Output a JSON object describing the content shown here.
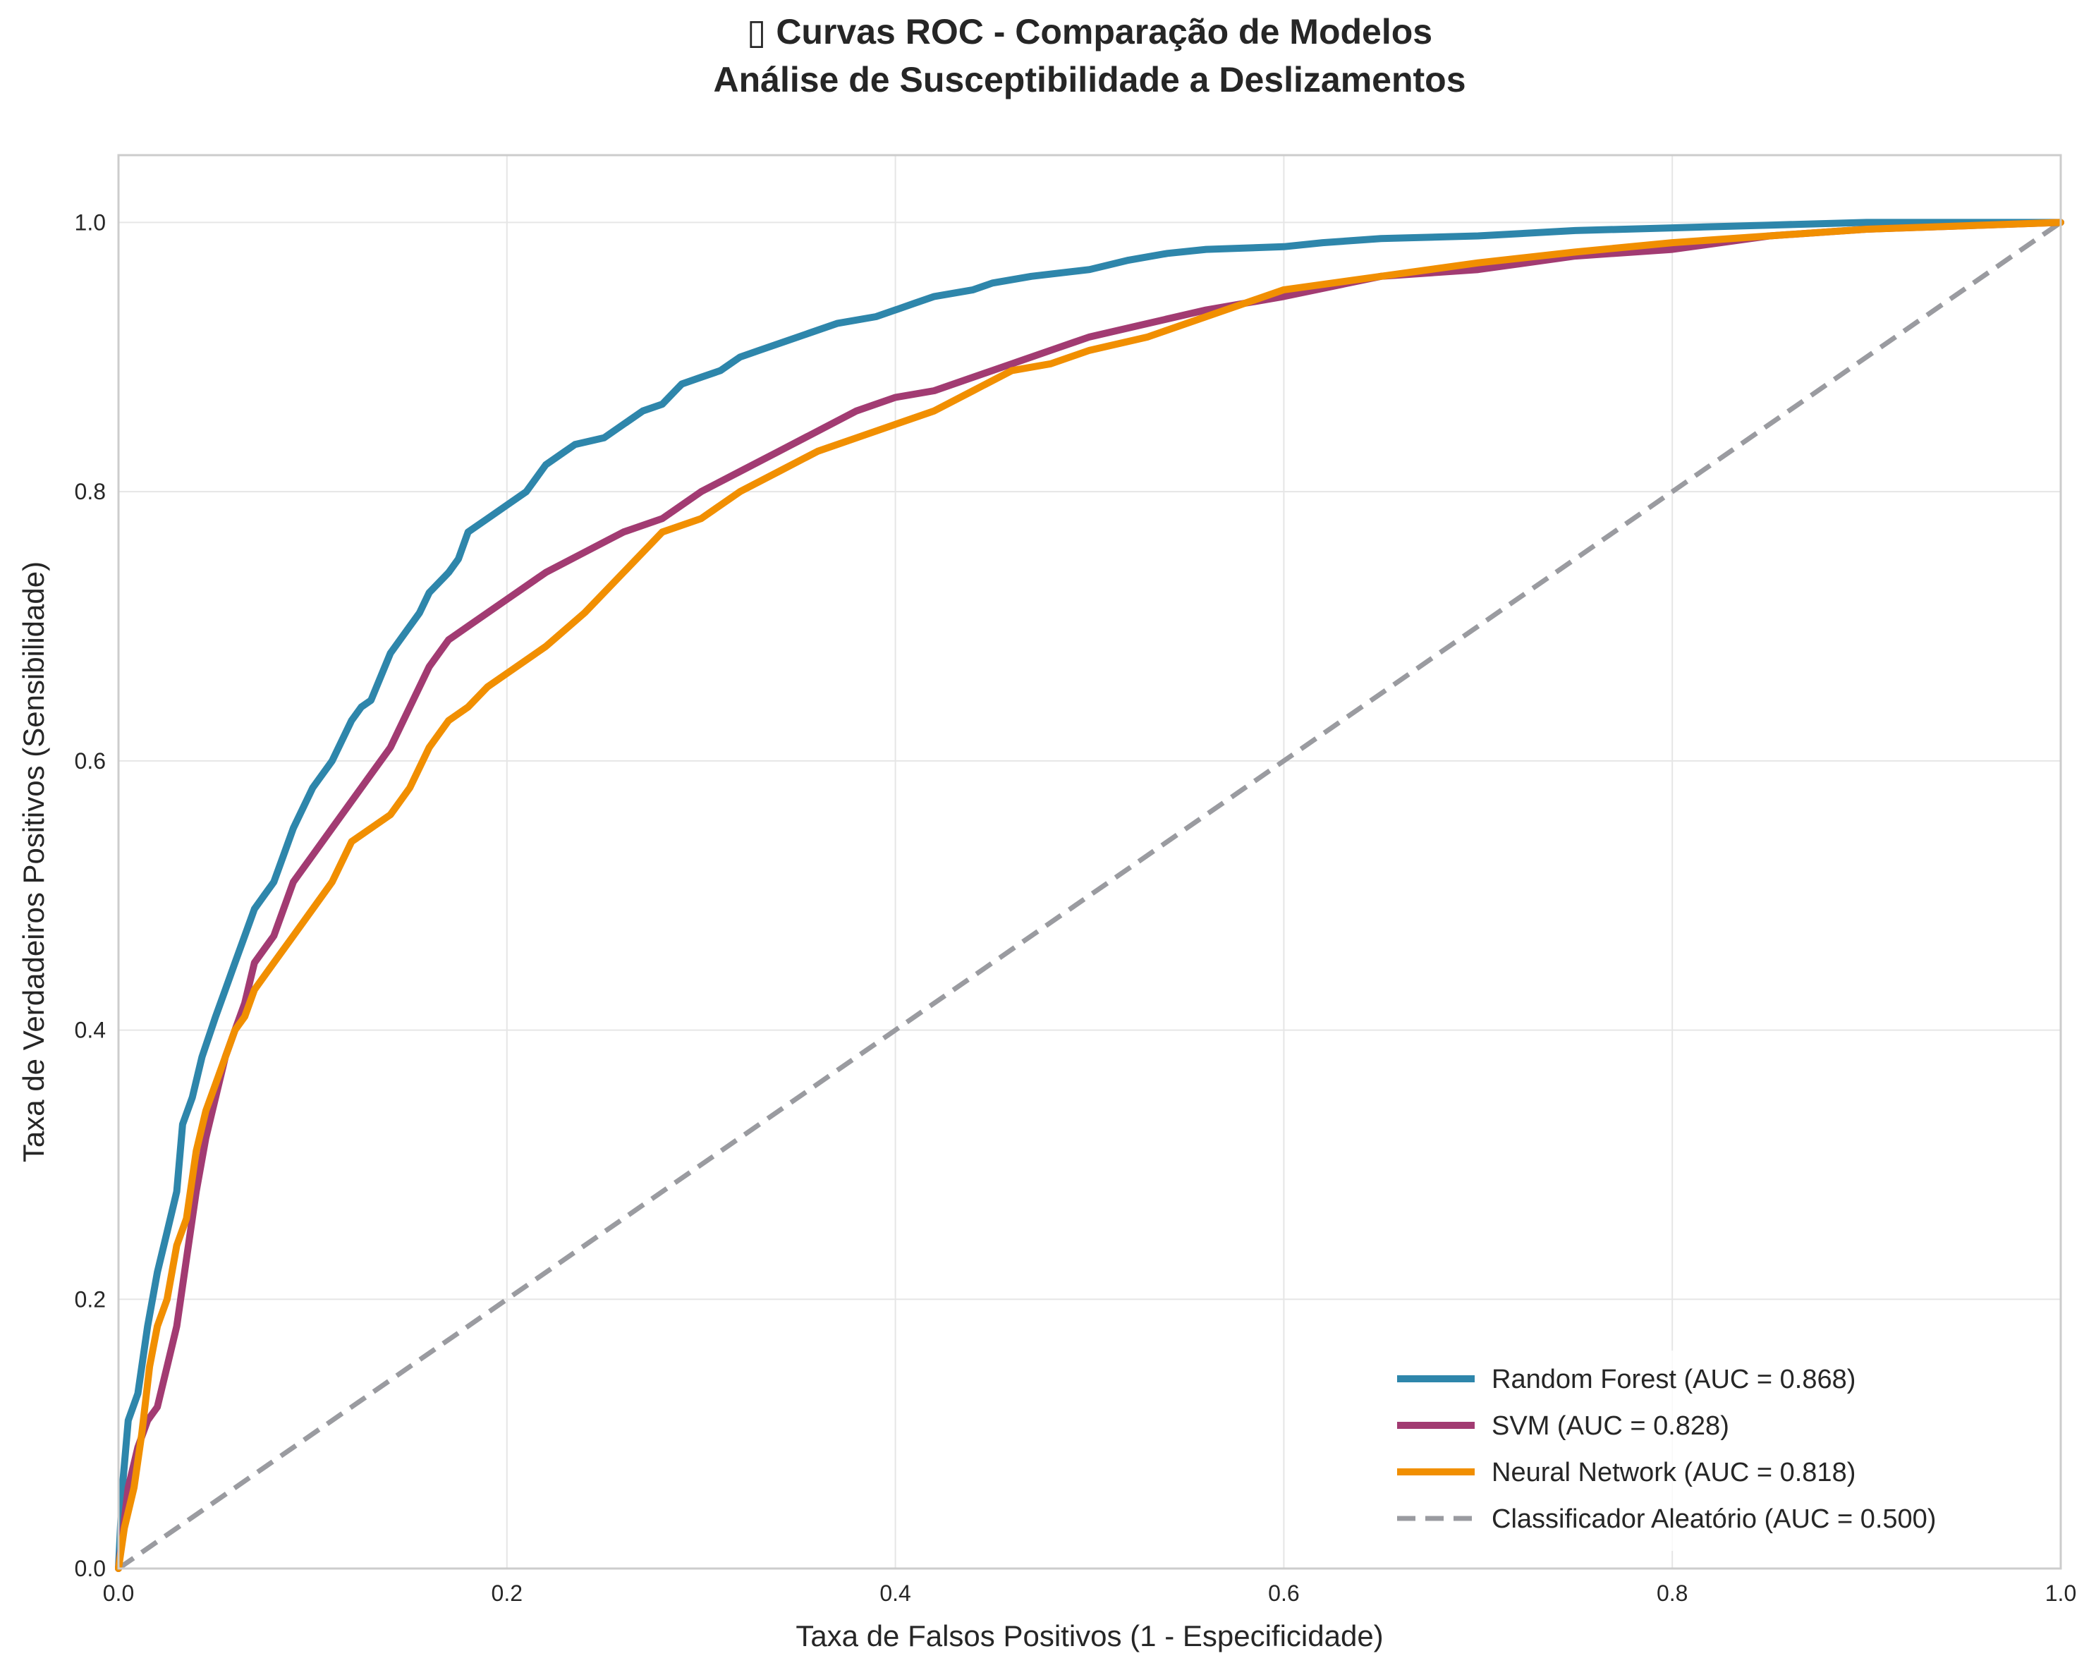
{
  "chart_data": {
    "type": "line",
    "title_lines": [
      "▯ Curvas ROC - Comparação de Modelos",
      "Análise de Susceptibilidade a Deslizamentos"
    ],
    "xlabel": "Taxa de Falsos Positivos (1 - Especificidade)",
    "ylabel": "Taxa de Verdadeiros Positivos (Sensibilidade)",
    "xlim": [
      0.0,
      1.0
    ],
    "ylim": [
      0.0,
      1.05
    ],
    "xticks": [
      0.0,
      0.2,
      0.4,
      0.6,
      0.8,
      1.0
    ],
    "yticks": [
      0.0,
      0.2,
      0.4,
      0.6,
      0.8,
      1.0
    ],
    "xtick_labels": [
      "0.0",
      "0.2",
      "0.4",
      "0.6",
      "0.8",
      "1.0"
    ],
    "ytick_labels": [
      "0.0",
      "0.2",
      "0.4",
      "0.6",
      "0.8",
      "1.0"
    ],
    "grid": true,
    "legend_position": "lower-right",
    "series": [
      {
        "name": "Random Forest (AUC = 0.868)",
        "color": "#2E86AB",
        "dash": false,
        "x": [
          0,
          0.002,
          0.005,
          0.01,
          0.015,
          0.02,
          0.025,
          0.03,
          0.033,
          0.038,
          0.043,
          0.05,
          0.055,
          0.06,
          0.065,
          0.07,
          0.075,
          0.08,
          0.085,
          0.09,
          0.1,
          0.11,
          0.12,
          0.125,
          0.13,
          0.14,
          0.15,
          0.155,
          0.16,
          0.17,
          0.175,
          0.18,
          0.19,
          0.2,
          0.21,
          0.215,
          0.22,
          0.23,
          0.235,
          0.25,
          0.26,
          0.27,
          0.28,
          0.29,
          0.3,
          0.31,
          0.32,
          0.33,
          0.35,
          0.37,
          0.39,
          0.4,
          0.41,
          0.42,
          0.44,
          0.45,
          0.47,
          0.5,
          0.52,
          0.54,
          0.56,
          0.6,
          0.62,
          0.65,
          0.7,
          0.75,
          0.8,
          0.85,
          0.9,
          1.0
        ],
        "y": [
          0,
          0.06,
          0.11,
          0.13,
          0.18,
          0.22,
          0.25,
          0.28,
          0.33,
          0.35,
          0.38,
          0.41,
          0.43,
          0.45,
          0.47,
          0.49,
          0.5,
          0.51,
          0.53,
          0.55,
          0.58,
          0.6,
          0.63,
          0.64,
          0.645,
          0.68,
          0.7,
          0.71,
          0.725,
          0.74,
          0.75,
          0.77,
          0.78,
          0.79,
          0.8,
          0.81,
          0.82,
          0.83,
          0.835,
          0.84,
          0.85,
          0.86,
          0.865,
          0.88,
          0.885,
          0.89,
          0.9,
          0.905,
          0.915,
          0.925,
          0.93,
          0.935,
          0.94,
          0.945,
          0.95,
          0.955,
          0.96,
          0.965,
          0.972,
          0.977,
          0.98,
          0.982,
          0.985,
          0.988,
          0.99,
          0.994,
          0.996,
          0.998,
          1.0,
          1.0
        ]
      },
      {
        "name": "SVM (AUC = 0.828)",
        "color": "#A23B72",
        "dash": false,
        "x": [
          0,
          0.005,
          0.01,
          0.015,
          0.02,
          0.025,
          0.03,
          0.035,
          0.04,
          0.045,
          0.05,
          0.055,
          0.06,
          0.065,
          0.07,
          0.08,
          0.09,
          0.1,
          0.11,
          0.12,
          0.13,
          0.14,
          0.15,
          0.16,
          0.17,
          0.18,
          0.19,
          0.2,
          0.22,
          0.24,
          0.26,
          0.28,
          0.3,
          0.32,
          0.34,
          0.36,
          0.38,
          0.4,
          0.42,
          0.44,
          0.46,
          0.48,
          0.5,
          0.53,
          0.56,
          0.6,
          0.65,
          0.7,
          0.75,
          0.8,
          0.85,
          0.9,
          1.0
        ],
        "y": [
          0,
          0.06,
          0.09,
          0.11,
          0.12,
          0.15,
          0.18,
          0.23,
          0.28,
          0.32,
          0.35,
          0.38,
          0.4,
          0.42,
          0.45,
          0.47,
          0.51,
          0.53,
          0.55,
          0.57,
          0.59,
          0.61,
          0.64,
          0.67,
          0.69,
          0.7,
          0.71,
          0.72,
          0.74,
          0.755,
          0.77,
          0.78,
          0.8,
          0.815,
          0.83,
          0.845,
          0.86,
          0.87,
          0.875,
          0.885,
          0.895,
          0.905,
          0.915,
          0.925,
          0.935,
          0.945,
          0.96,
          0.965,
          0.975,
          0.98,
          0.99,
          0.995,
          1.0
        ]
      },
      {
        "name": "Neural Network (AUC = 0.818)",
        "color": "#F18F01",
        "dash": false,
        "x": [
          0,
          0.003,
          0.008,
          0.012,
          0.016,
          0.02,
          0.025,
          0.03,
          0.035,
          0.04,
          0.045,
          0.05,
          0.055,
          0.06,
          0.065,
          0.07,
          0.08,
          0.09,
          0.1,
          0.11,
          0.12,
          0.13,
          0.14,
          0.15,
          0.16,
          0.17,
          0.18,
          0.19,
          0.2,
          0.22,
          0.24,
          0.26,
          0.28,
          0.3,
          0.32,
          0.34,
          0.36,
          0.38,
          0.4,
          0.42,
          0.44,
          0.46,
          0.48,
          0.5,
          0.53,
          0.56,
          0.6,
          0.65,
          0.7,
          0.75,
          0.8,
          0.85,
          0.9,
          1.0
        ],
        "y": [
          0,
          0.03,
          0.06,
          0.1,
          0.15,
          0.18,
          0.2,
          0.24,
          0.26,
          0.31,
          0.34,
          0.36,
          0.38,
          0.4,
          0.41,
          0.43,
          0.45,
          0.47,
          0.49,
          0.51,
          0.54,
          0.55,
          0.56,
          0.58,
          0.61,
          0.63,
          0.64,
          0.655,
          0.665,
          0.685,
          0.71,
          0.74,
          0.77,
          0.78,
          0.8,
          0.815,
          0.83,
          0.84,
          0.85,
          0.86,
          0.875,
          0.89,
          0.895,
          0.905,
          0.915,
          0.93,
          0.95,
          0.96,
          0.97,
          0.978,
          0.985,
          0.99,
          0.995,
          1.0
        ]
      },
      {
        "name": "Classificador Aleatório (AUC = 0.500)",
        "color": "#9A9BA0",
        "dash": true,
        "x": [
          0,
          1
        ],
        "y": [
          0,
          1
        ]
      }
    ]
  }
}
